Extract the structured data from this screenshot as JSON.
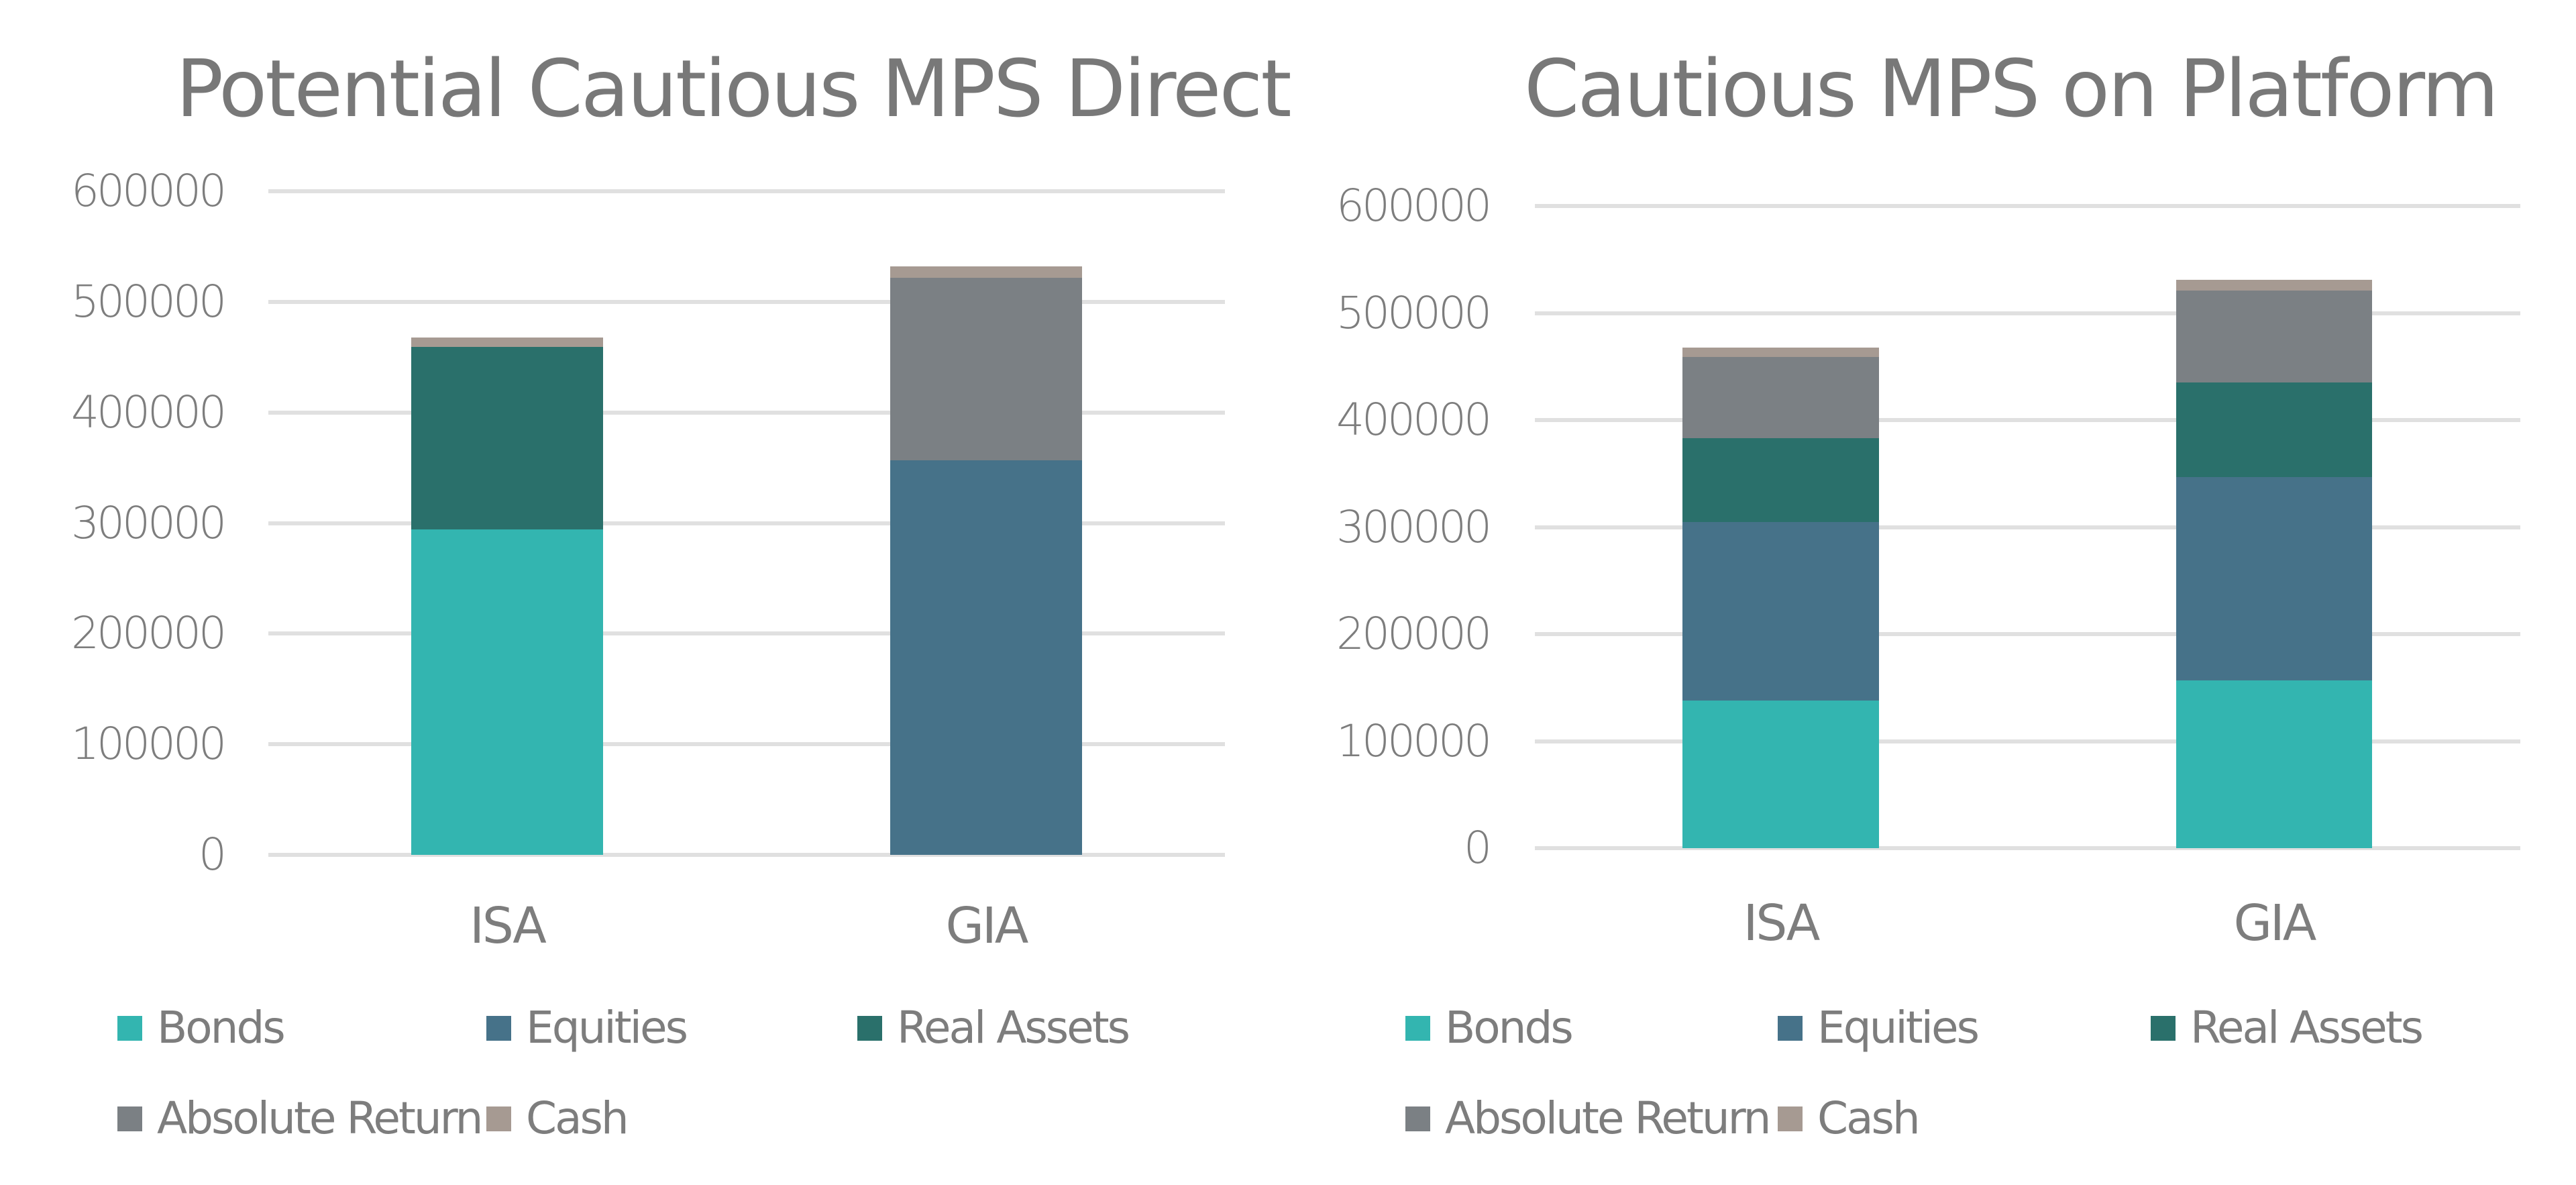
{
  "colors": {
    "Bonds": "#33b5b0",
    "Equities": "#467289",
    "Real Assets": "#2a706b",
    "Absolute Return": "#7b8084",
    "Cash": "#a69a92",
    "grid": "#e0e0e0",
    "text": "#7a7a7a"
  },
  "legend": {
    "items": [
      "Bonds",
      "Equities",
      "Real Assets",
      "Absolute Return",
      "Cash"
    ]
  },
  "chart_data": [
    {
      "type": "bar",
      "stacked": true,
      "title": "Potential Cautious MPS Direct",
      "categories": [
        "ISA",
        "GIA"
      ],
      "series": [
        {
          "name": "Bonds",
          "values": [
            294000,
            0
          ]
        },
        {
          "name": "Equities",
          "values": [
            0,
            357000
          ]
        },
        {
          "name": "Real Assets",
          "values": [
            165000,
            0
          ]
        },
        {
          "name": "Absolute Return",
          "values": [
            0,
            165000
          ]
        },
        {
          "name": "Cash",
          "values": [
            9000,
            10000
          ]
        }
      ],
      "xlabel": "",
      "ylabel": "",
      "ylim": [
        0,
        600000
      ],
      "yticks": [
        "0",
        "100000",
        "200000",
        "300000",
        "400000",
        "500000",
        "600000"
      ],
      "grid": true,
      "legend_position": "bottom"
    },
    {
      "type": "bar",
      "stacked": true,
      "title": "Cautious MPS on Platform",
      "categories": [
        "ISA",
        "GIA"
      ],
      "series": [
        {
          "name": "Bonds",
          "values": [
            138000,
            157000
          ]
        },
        {
          "name": "Equities",
          "values": [
            167000,
            190000
          ]
        },
        {
          "name": "Real Assets",
          "values": [
            78000,
            88000
          ]
        },
        {
          "name": "Absolute Return",
          "values": [
            76000,
            86000
          ]
        },
        {
          "name": "Cash",
          "values": [
            9000,
            10000
          ]
        }
      ],
      "xlabel": "",
      "ylabel": "",
      "ylim": [
        0,
        600000
      ],
      "yticks": [
        "0",
        "100000",
        "200000",
        "300000",
        "400000",
        "500000",
        "600000"
      ],
      "grid": true,
      "legend_position": "bottom"
    }
  ]
}
